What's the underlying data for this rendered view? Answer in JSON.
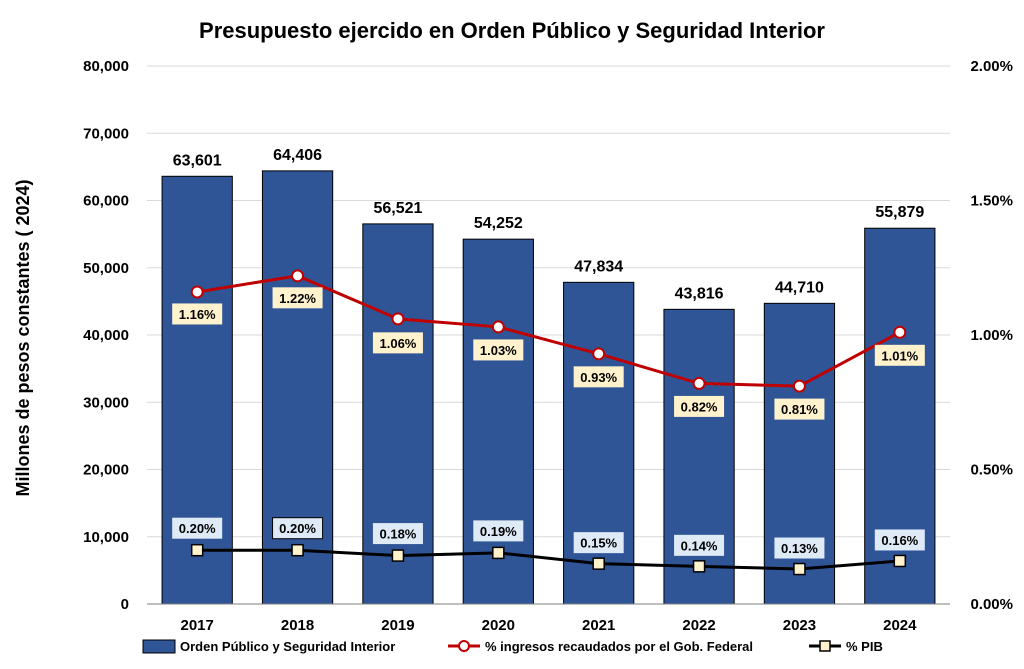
{
  "chart_data": {
    "type": "bar",
    "title": "Presupuesto ejercido en Orden Público y Seguridad Interior",
    "xlabel": "",
    "ylabel": "Millones de pesos constantes ( 2024)",
    "categories": [
      "2017",
      "2018",
      "2019",
      "2020",
      "2021",
      "2022",
      "2023",
      "2024"
    ],
    "ylim": [
      0,
      80000
    ],
    "y_ticks": [
      "0",
      "10,000",
      "20,000",
      "30,000",
      "40,000",
      "50,000",
      "60,000",
      "70,000",
      "80,000"
    ],
    "y2lim": [
      0,
      2.0
    ],
    "y2_ticks": [
      "0.00%",
      "0.50%",
      "1.00%",
      "1.50%",
      "2.00%"
    ],
    "grid": true,
    "legend_position": "bottom",
    "series": [
      {
        "name": "Orden Público y Seguridad Interior",
        "type": "bar",
        "axis": "left",
        "color": "#2F5597",
        "values": [
          63601,
          64406,
          56521,
          54252,
          47834,
          43816,
          44710,
          55879
        ],
        "labels": [
          "63,601",
          "64,406",
          "56,521",
          "54,252",
          "47,834",
          "43,816",
          "44,710",
          "55,879"
        ]
      },
      {
        "name": "% ingresos recaudados por el Gob. Federal",
        "type": "line",
        "axis": "right",
        "color": "#C00000",
        "label_background": "#FFF2CC",
        "values": [
          1.16,
          1.22,
          1.06,
          1.03,
          0.93,
          0.82,
          0.81,
          1.01
        ],
        "labels": [
          "1.16%",
          "1.22%",
          "1.06%",
          "1.03%",
          "0.93%",
          "0.82%",
          "0.81%",
          "1.01%"
        ]
      },
      {
        "name": "% PIB",
        "type": "line",
        "axis": "right",
        "color": "#000000",
        "label_background": "#DEEBF7",
        "values": [
          0.2,
          0.2,
          0.18,
          0.19,
          0.15,
          0.14,
          0.13,
          0.16
        ],
        "labels": [
          "0.20%",
          "0.20%",
          "0.18%",
          "0.19%",
          "0.15%",
          "0.14%",
          "0.13%",
          "0.16%"
        ]
      }
    ]
  }
}
